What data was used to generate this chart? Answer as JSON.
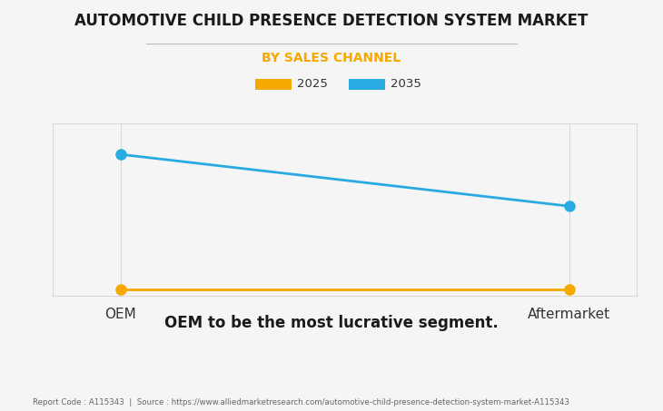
{
  "title": "AUTOMOTIVE CHILD PRESENCE DETECTION SYSTEM MARKET",
  "subtitle": "BY SALES CHANNEL",
  "categories": [
    "OEM",
    "Aftermarket"
  ],
  "series": [
    {
      "label": "2025",
      "color": "#F5A800",
      "values": [
        0.04,
        0.04
      ],
      "marker": "o",
      "markersize": 8,
      "linewidth": 2.0
    },
    {
      "label": "2035",
      "color": "#29ABE2",
      "values": [
        0.82,
        0.52
      ],
      "marker": "o",
      "markersize": 8,
      "linewidth": 2.0
    }
  ],
  "ylim": [
    0,
    1.0
  ],
  "xlim": [
    -0.15,
    1.15
  ],
  "grid_color": "#d8d8d8",
  "background_color": "#f5f5f5",
  "plot_bg_color": "#f5f5f5",
  "subtitle_color": "#F5A800",
  "title_fontsize": 12,
  "subtitle_fontsize": 10,
  "annotation": "OEM to be the most lucrative segment.",
  "footer": "Report Code : A115343  |  Source : https://www.alliedmarketresearch.com/automotive-child-presence-detection-system-market-A115343",
  "legend_color_2025": "#F5A800",
  "legend_color_2035": "#29ABE2"
}
